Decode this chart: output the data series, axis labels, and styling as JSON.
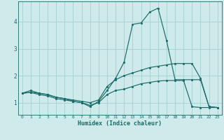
{
  "xlabel": "Humidex (Indice chaleur)",
  "bg_color": "#ceeaea",
  "grid_color": "#a8d4d4",
  "line_color": "#1a6b6b",
  "xlim": [
    -0.5,
    23.5
  ],
  "ylim": [
    0.55,
    4.75
  ],
  "yticks": [
    1,
    2,
    3,
    4
  ],
  "xticks": [
    0,
    1,
    2,
    3,
    4,
    5,
    6,
    7,
    8,
    9,
    10,
    11,
    12,
    13,
    14,
    15,
    16,
    17,
    18,
    19,
    20,
    21,
    22,
    23
  ],
  "line1_x": [
    0,
    1,
    2,
    3,
    4,
    5,
    6,
    7,
    8,
    9,
    10,
    11,
    12,
    13,
    14,
    15,
    16,
    17,
    18,
    19,
    20,
    21,
    22,
    23
  ],
  "line1_y": [
    1.35,
    1.45,
    1.35,
    1.3,
    1.2,
    1.15,
    1.05,
    1.0,
    0.85,
    1.05,
    1.45,
    1.9,
    2.5,
    3.9,
    3.95,
    4.35,
    4.5,
    3.3,
    1.85,
    1.85,
    1.85,
    1.85,
    0.85,
    0.82
  ],
  "line2_x": [
    0,
    1,
    2,
    3,
    4,
    5,
    6,
    7,
    8,
    9,
    10,
    11,
    12,
    13,
    14,
    15,
    16,
    17,
    18,
    19,
    20,
    21,
    22,
    23
  ],
  "line2_y": [
    1.35,
    1.38,
    1.35,
    1.3,
    1.2,
    1.15,
    1.1,
    1.05,
    1.0,
    1.1,
    1.6,
    1.85,
    2.0,
    2.1,
    2.2,
    2.3,
    2.35,
    2.4,
    2.45,
    2.45,
    2.45,
    1.9,
    0.85,
    0.82
  ],
  "line3_x": [
    0,
    1,
    2,
    3,
    4,
    5,
    6,
    7,
    8,
    9,
    10,
    11,
    12,
    13,
    14,
    15,
    16,
    17,
    18,
    19,
    20,
    21,
    22,
    23
  ],
  "line3_y": [
    1.35,
    1.38,
    1.3,
    1.25,
    1.15,
    1.1,
    1.05,
    1.0,
    0.9,
    1.0,
    1.3,
    1.45,
    1.5,
    1.6,
    1.7,
    1.75,
    1.8,
    1.82,
    1.82,
    1.82,
    0.85,
    0.82,
    0.82,
    0.82
  ]
}
